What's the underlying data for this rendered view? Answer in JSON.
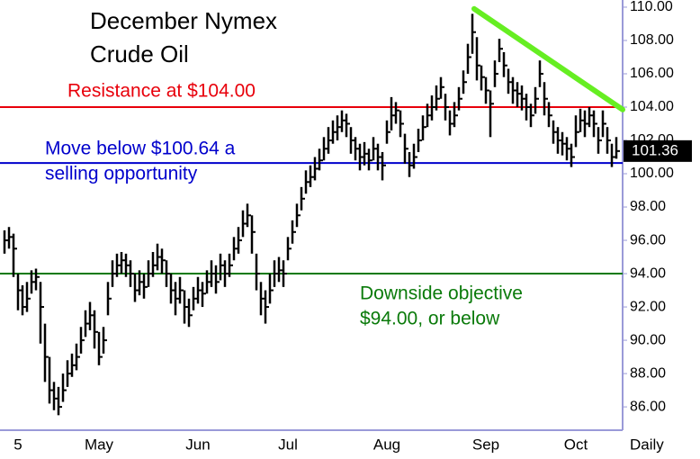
{
  "chart_data": {
    "type": "ohlc",
    "title": [
      "December Nymex",
      "Crude Oil"
    ],
    "x_axis_label": "Daily",
    "color": "#000000",
    "categories": [
      null,
      null,
      null,
      "5",
      null,
      null,
      null,
      null,
      null,
      null,
      null,
      null,
      null,
      null,
      null,
      null,
      null,
      null,
      null,
      null,
      null,
      "May",
      null,
      null,
      null,
      null,
      null,
      null,
      null,
      null,
      null,
      null,
      null,
      null,
      null,
      null,
      null,
      null,
      null,
      null,
      null,
      null,
      null,
      "Jun",
      null,
      null,
      null,
      null,
      null,
      null,
      null,
      null,
      null,
      null,
      null,
      null,
      null,
      null,
      null,
      null,
      null,
      null,
      null,
      "Jul",
      null,
      null,
      null,
      null,
      null,
      null,
      null,
      null,
      null,
      null,
      null,
      null,
      null,
      null,
      null,
      null,
      null,
      null,
      null,
      null,
      null,
      "Aug",
      null,
      null,
      null,
      null,
      null,
      null,
      null,
      null,
      null,
      null,
      null,
      null,
      null,
      null,
      null,
      null,
      null,
      null,
      null,
      null,
      null,
      "Sep",
      null,
      null,
      null,
      null,
      null,
      null,
      null,
      null,
      null,
      null,
      null,
      null,
      null,
      null,
      null,
      null,
      null,
      null,
      null,
      "Oct",
      null,
      null,
      null,
      null,
      null,
      null,
      null,
      null,
      null
    ],
    "high": [
      96.6,
      96.8,
      96.4,
      94,
      93.3,
      93.5,
      94.2,
      94.3,
      93.5,
      91,
      89,
      87.5,
      87.2,
      88,
      88.8,
      89.2,
      89.8,
      90.8,
      91.8,
      92.3,
      91.8,
      90.5,
      90.8,
      93.5,
      94.8,
      95.2,
      95.3,
      95.2,
      94.8,
      94,
      94.2,
      94,
      94.8,
      95.3,
      95.8,
      95.5,
      94.8,
      94,
      93.5,
      93.8,
      93,
      92.5,
      93.2,
      93.8,
      93.5,
      94.2,
      94.8,
      94.5,
      95.2,
      94.8,
      95.2,
      96.2,
      96.8,
      97.8,
      98.2,
      97.5,
      95.2,
      93.5,
      93,
      94,
      94.8,
      95,
      94.8,
      96.2,
      97.2,
      98.2,
      99.2,
      100.2,
      100.5,
      101,
      101.5,
      102.2,
      102.8,
      103.2,
      103.5,
      103.8,
      103.6,
      102.8,
      102.2,
      101.8,
      101.9,
      101.5,
      102.2,
      101.8,
      101.3,
      103.2,
      104.6,
      104.3,
      103.8,
      102.4,
      101.3,
      101.8,
      102.7,
      103.5,
      104.2,
      104.7,
      105.3,
      105.8,
      104.8,
      103.8,
      104.3,
      105.2,
      106.2,
      107.8,
      109.6,
      108.2,
      106.5,
      105.8,
      105,
      106.8,
      108.1,
      107.3,
      106.3,
      105.8,
      105.5,
      105.3,
      104.8,
      104.2,
      105.2,
      106.8,
      105.5,
      104.3,
      103.2,
      102.8,
      102.5,
      102.2,
      101.8,
      103.5,
      103.9,
      103.8,
      104,
      103.8,
      102.8,
      103.8,
      102.8,
      101.8,
      102.2
    ],
    "low": [
      95.2,
      95.5,
      93.8,
      91.8,
      91.5,
      91.7,
      92.8,
      93,
      89.8,
      87.5,
      86.2,
      85.8,
      85.5,
      86.3,
      87.2,
      87.8,
      88.2,
      89.2,
      90.2,
      90.6,
      89.5,
      88.5,
      89.2,
      91.5,
      93.2,
      93.8,
      94,
      93.8,
      93.2,
      92.3,
      92.7,
      92.5,
      93.2,
      93.8,
      94.2,
      94,
      93.2,
      92.2,
      91.5,
      92.2,
      91,
      90.8,
      91.8,
      92.2,
      92,
      92.8,
      93.2,
      92.8,
      93.6,
      93.2,
      93.8,
      94.8,
      95.2,
      96.2,
      96.8,
      95.2,
      93,
      91.5,
      91,
      92.2,
      93.2,
      93.5,
      93.2,
      94.8,
      95.8,
      96.8,
      97.8,
      98.8,
      99.2,
      99.6,
      100.2,
      100.8,
      101.2,
      101.8,
      102,
      102.5,
      102.2,
      101.2,
      100.8,
      100.2,
      100.5,
      100.2,
      100.8,
      100.2,
      99.6,
      101.8,
      102.6,
      103,
      102.2,
      100.6,
      99.8,
      100.3,
      101.3,
      102,
      102.8,
      103.2,
      103.8,
      104.5,
      103.2,
      102.3,
      102.8,
      103.8,
      104.8,
      106,
      107.2,
      105.6,
      105,
      104.2,
      102.2,
      105.2,
      106.7,
      105.8,
      104.8,
      104.2,
      104,
      103.8,
      103.2,
      102.8,
      103.6,
      105.2,
      103.5,
      102.8,
      101.8,
      101.2,
      101.1,
      100.8,
      100.4,
      101.6,
      102.5,
      102.2,
      102.8,
      102.2,
      101.2,
      102.2,
      101.2,
      100.4,
      100.9
    ],
    "close": [
      96,
      96.2,
      95.5,
      93,
      92,
      92.5,
      93.5,
      93.8,
      92,
      89,
      87,
      86.5,
      86,
      87,
      88,
      88.5,
      89,
      90,
      91,
      91.5,
      90.5,
      89,
      90,
      92.5,
      94,
      94.5,
      94.8,
      94.5,
      94,
      93,
      93.5,
      93.2,
      94,
      94.5,
      95,
      94.8,
      94,
      93,
      92.5,
      93,
      92,
      91.5,
      92.5,
      93,
      92.8,
      93.5,
      94,
      93.5,
      94.5,
      94,
      94.5,
      95.5,
      96,
      97,
      97.5,
      96.5,
      94,
      92.5,
      92,
      93,
      94,
      94.2,
      94,
      95.5,
      96.5,
      97.5,
      98.5,
      99.5,
      99.8,
      100.3,
      100.8,
      101.5,
      102,
      102.5,
      102.8,
      103.2,
      103,
      102,
      101.5,
      101,
      101.2,
      100.8,
      101.5,
      101,
      100.5,
      102.5,
      103.5,
      103.8,
      103,
      101.5,
      100.5,
      101,
      102,
      102.8,
      103.5,
      104,
      104.5,
      105.2,
      104,
      103,
      103.5,
      104.5,
      105.5,
      107,
      108.5,
      106.5,
      105.8,
      105,
      104.2,
      106,
      107.5,
      106.5,
      105.5,
      105,
      104.8,
      104.5,
      104,
      103.5,
      104.5,
      106,
      104.5,
      103.5,
      102.5,
      102,
      101.8,
      101.5,
      101,
      102.5,
      103.2,
      103,
      103.5,
      103,
      102,
      103,
      102,
      101,
      101.36
    ],
    "ylim": [
      84.6,
      110.43
    ],
    "yticks": [
      {
        "value": 86,
        "label": "86.00"
      },
      {
        "value": 88,
        "label": "88.00"
      },
      {
        "value": 90,
        "label": "90.00"
      },
      {
        "value": 92,
        "label": "92.00"
      },
      {
        "value": 94,
        "label": "94.00"
      },
      {
        "value": 96,
        "label": "96.00"
      },
      {
        "value": 98,
        "label": "98.00"
      },
      {
        "value": 100,
        "label": "100.00"
      },
      {
        "value": 102,
        "label": "102.00"
      },
      {
        "value": 104,
        "label": "104.00"
      },
      {
        "value": 106,
        "label": "106.00"
      },
      {
        "value": 108,
        "label": "108.00"
      },
      {
        "value": 110,
        "label": "110.00"
      }
    ],
    "reference_lines": [
      {
        "value": 104,
        "color": "#e8000b",
        "label": [
          "Resistance at $104.00"
        ]
      },
      {
        "value": 100.64,
        "color": "#0000cc",
        "label": [
          "Move below $100.64 a",
          "selling opportunity"
        ]
      },
      {
        "value": 94,
        "color": "#0a7a0a",
        "label": [
          "Downside objective",
          "$94.00, or below"
        ]
      }
    ],
    "trendline": {
      "color": "#66ee22",
      "x": [
        104.4,
        137.4
      ],
      "y": [
        109.9,
        103.85
      ]
    }
  }
}
